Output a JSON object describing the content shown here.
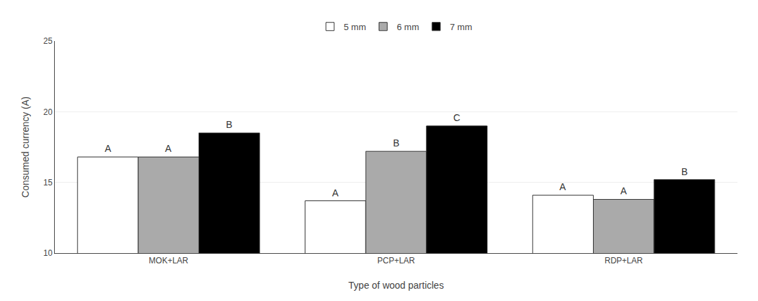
{
  "chart_data": {
    "type": "bar",
    "categories": [
      "MOK+LAR",
      "PCP+LAR",
      "RDP+LAR"
    ],
    "series": [
      {
        "name": "5 mm",
        "color": "#FFFFFF",
        "values": [
          16.8,
          13.7,
          14.1
        ]
      },
      {
        "name": "6 mm",
        "color": "#AAAAAA",
        "values": [
          16.8,
          17.2,
          13.8
        ]
      },
      {
        "name": "7 mm",
        "color": "#000000",
        "values": [
          18.5,
          19.0,
          15.2
        ]
      }
    ],
    "annotations": [
      {
        "category": "MOK+LAR",
        "series": "5 mm",
        "text": "A"
      },
      {
        "category": "MOK+LAR",
        "series": "6 mm",
        "text": "A"
      },
      {
        "category": "MOK+LAR",
        "series": "7 mm",
        "text": "B"
      },
      {
        "category": "PCP+LAR",
        "series": "5 mm",
        "text": "A"
      },
      {
        "category": "PCP+LAR",
        "series": "6 mm",
        "text": "B"
      },
      {
        "category": "PCP+LAR",
        "series": "7 mm",
        "text": "C"
      },
      {
        "category": "RDP+LAR",
        "series": "5 mm",
        "text": "A"
      },
      {
        "category": "RDP+LAR",
        "series": "6 mm",
        "text": "A"
      },
      {
        "category": "RDP+LAR",
        "series": "7 mm",
        "text": "B"
      }
    ],
    "xlabel": "Type of wood particles",
    "ylabel": "Consumed currency (A)",
    "ylim": [
      10,
      25
    ],
    "yticks": [
      10,
      15,
      20,
      25
    ],
    "grid": true,
    "legend": "top"
  }
}
